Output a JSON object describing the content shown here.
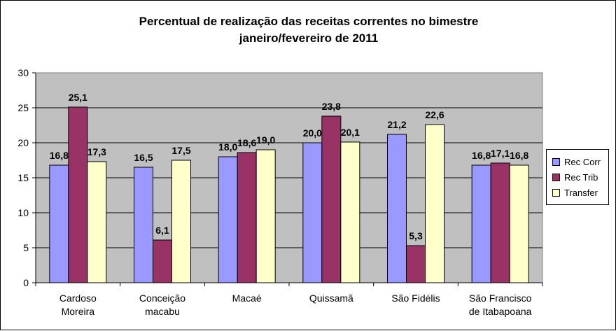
{
  "chart_data": {
    "type": "bar",
    "title": "Percentual de realização das receitas correntes no bimestre",
    "subtitle": "janeiro/fevereiro de 2011",
    "categories": [
      [
        "Cardoso",
        "Moreira"
      ],
      [
        "Conceição",
        "macabu"
      ],
      [
        "Macaé"
      ],
      [
        "Quissamã"
      ],
      [
        "São Fidélis"
      ],
      [
        "São Francisco",
        "de Itabapoana"
      ]
    ],
    "series": [
      {
        "name": "Rec Corr",
        "color": "#9999ff",
        "values": [
          16.8,
          16.5,
          18.0,
          20.0,
          21.2,
          16.8
        ],
        "labels": [
          "16,8",
          "16,5",
          "18,0",
          "20,0",
          "21,2",
          "16,8"
        ]
      },
      {
        "name": "Rec Trib",
        "color": "#993366",
        "values": [
          25.1,
          6.1,
          18.6,
          23.8,
          5.3,
          17.1
        ],
        "labels": [
          "25,1",
          "6,1",
          "18,6",
          "23,8",
          "5,3",
          "17,1"
        ]
      },
      {
        "name": "Transfer",
        "color": "#ffffcc",
        "values": [
          17.3,
          17.5,
          19.0,
          20.1,
          22.6,
          16.8
        ],
        "labels": [
          "17,3",
          "17,5",
          "19,0",
          "20,1",
          "22,6",
          "16,8"
        ]
      }
    ],
    "ylim": [
      0,
      30
    ],
    "yticks": [
      "0",
      "5",
      "10",
      "15",
      "20",
      "25",
      "30"
    ],
    "plot_background": "#c0c0c0",
    "grid": true,
    "legend_position": "right"
  }
}
